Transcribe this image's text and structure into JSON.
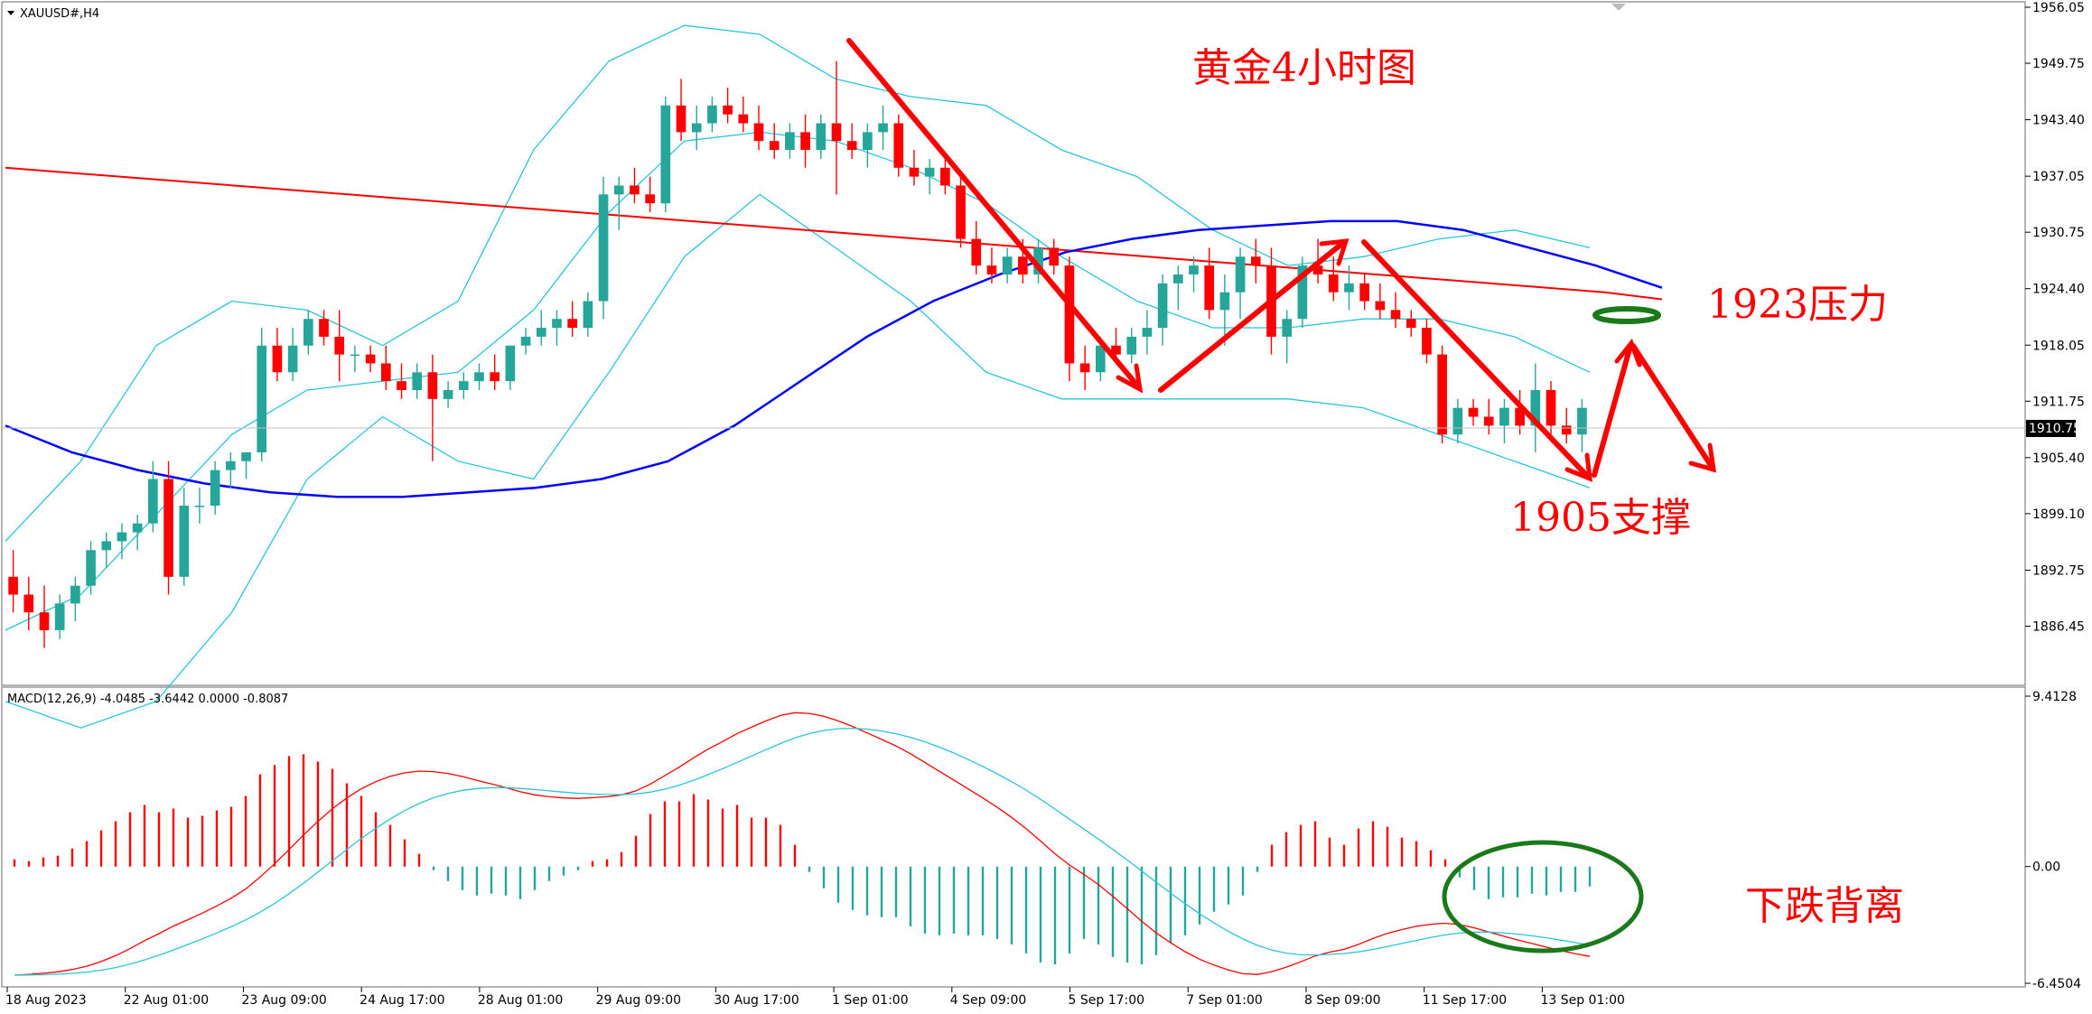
{
  "header": {
    "symbol": "XAUUSD#,H4",
    "macd_label": "MACD(12,26,9) -4.0485 -3.6442 0.0000 -0.8087"
  },
  "annotations": {
    "title": "黄金4小时图",
    "resistance": "1923压力",
    "support": "1905支撑",
    "divergence": "下跌背离"
  },
  "price_tag": "1910.75",
  "colors": {
    "bull": "#26a69a",
    "bear": "#ff0000",
    "ma_red": "#ff0000",
    "ma_blue": "#0000ff",
    "bands": "#26c6da",
    "annot": "#ff0000",
    "green_ellipse": "#1a7a1a"
  },
  "chart_data": [
    {
      "type": "candlestick",
      "symbol": "XAUUSD#",
      "timeframe": "H4",
      "ylim": [
        1880.0,
        1956.05
      ],
      "yticks": [
        "1956.05",
        "1949.75",
        "1943.40",
        "1937.05",
        "1930.75",
        "1924.40",
        "1918.05",
        "1911.75",
        "1905.40",
        "1899.10",
        "1892.75",
        "1886.45"
      ],
      "xticks": [
        "18 Aug 2023",
        "22 Aug 01:00",
        "23 Aug 09:00",
        "24 Aug 17:00",
        "28 Aug 01:00",
        "29 Aug 09:00",
        "30 Aug 17:00",
        "1 Sep 01:00",
        "4 Sep 09:00",
        "5 Sep 17:00",
        "7 Sep 01:00",
        "8 Sep 09:00",
        "11 Sep 17:00",
        "13 Sep 01:00"
      ],
      "current_price": 1910.75,
      "candles_ohlc": [
        [
          1892,
          1895,
          1888,
          1890
        ],
        [
          1890,
          1892,
          1886,
          1888
        ],
        [
          1888,
          1891,
          1884,
          1886
        ],
        [
          1886,
          1890,
          1885,
          1889
        ],
        [
          1889,
          1892,
          1887,
          1891
        ],
        [
          1891,
          1896,
          1890,
          1895
        ],
        [
          1895,
          1897,
          1893,
          1896
        ],
        [
          1896,
          1898,
          1894,
          1897
        ],
        [
          1897,
          1899,
          1895,
          1898
        ],
        [
          1898,
          1905,
          1897,
          1903
        ],
        [
          1903,
          1905,
          1890,
          1892
        ],
        [
          1892,
          1902,
          1891,
          1900
        ],
        [
          1900,
          1902,
          1898,
          1900
        ],
        [
          1900,
          1905,
          1899,
          1904
        ],
        [
          1904,
          1906,
          1902,
          1905
        ],
        [
          1905,
          1906,
          1903,
          1906
        ],
        [
          1906,
          1920,
          1905,
          1918
        ],
        [
          1918,
          1920,
          1914,
          1915
        ],
        [
          1915,
          1920,
          1914,
          1918
        ],
        [
          1918,
          1922,
          1917,
          1921
        ],
        [
          1921,
          1922,
          1918,
          1919
        ],
        [
          1919,
          1922,
          1914,
          1917
        ],
        [
          1917,
          1918,
          1915,
          1917
        ],
        [
          1917,
          1918,
          1915,
          1916
        ],
        [
          1916,
          1918,
          1913,
          1914
        ],
        [
          1914,
          1916,
          1912,
          1913
        ],
        [
          1913,
          1916,
          1912,
          1915
        ],
        [
          1915,
          1917,
          1905,
          1912
        ],
        [
          1912,
          1914,
          1911,
          1913
        ],
        [
          1913,
          1915,
          1912,
          1914
        ],
        [
          1914,
          1916,
          1913,
          1915
        ],
        [
          1915,
          1917,
          1913,
          1914
        ],
        [
          1914,
          1918,
          1913,
          1918
        ],
        [
          1918,
          1920,
          1917,
          1919
        ],
        [
          1919,
          1922,
          1918,
          1920
        ],
        [
          1920,
          1922,
          1918,
          1921
        ],
        [
          1921,
          1923,
          1919,
          1920
        ],
        [
          1920,
          1924,
          1919,
          1923
        ],
        [
          1923,
          1937,
          1921,
          1935
        ],
        [
          1935,
          1937,
          1931,
          1936
        ],
        [
          1936,
          1938,
          1934,
          1935
        ],
        [
          1935,
          1937,
          1933,
          1934
        ],
        [
          1934,
          1946,
          1933,
          1945
        ],
        [
          1945,
          1948,
          1941,
          1942
        ],
        [
          1942,
          1945,
          1940,
          1943
        ],
        [
          1943,
          1946,
          1942,
          1945
        ],
        [
          1945,
          1947,
          1943,
          1944
        ],
        [
          1944,
          1946,
          1942,
          1943
        ],
        [
          1943,
          1945,
          1940,
          1941
        ],
        [
          1941,
          1943,
          1939,
          1940
        ],
        [
          1940,
          1943,
          1939,
          1942
        ],
        [
          1942,
          1944,
          1938,
          1940
        ],
        [
          1940,
          1944,
          1939,
          1943
        ],
        [
          1943,
          1950,
          1935,
          1941
        ],
        [
          1941,
          1943,
          1939,
          1940
        ],
        [
          1940,
          1943,
          1938,
          1942
        ],
        [
          1942,
          1945,
          1940,
          1943
        ],
        [
          1943,
          1944,
          1937,
          1938
        ],
        [
          1938,
          1940,
          1936,
          1937
        ],
        [
          1937,
          1939,
          1935,
          1938
        ],
        [
          1938,
          1939,
          1935,
          1936
        ],
        [
          1936,
          1937,
          1929,
          1930
        ],
        [
          1930,
          1932,
          1926,
          1927
        ],
        [
          1927,
          1929,
          1925,
          1926
        ],
        [
          1926,
          1929,
          1925,
          1928
        ],
        [
          1928,
          1930,
          1925,
          1926
        ],
        [
          1926,
          1930,
          1925,
          1929
        ],
        [
          1929,
          1930,
          1926,
          1927
        ],
        [
          1927,
          1928,
          1914,
          1916
        ],
        [
          1916,
          1918,
          1913,
          1915
        ],
        [
          1915,
          1919,
          1914,
          1918
        ],
        [
          1918,
          1920,
          1916,
          1917
        ],
        [
          1917,
          1920,
          1916,
          1919
        ],
        [
          1919,
          1922,
          1917,
          1920
        ],
        [
          1920,
          1926,
          1918,
          1925
        ],
        [
          1925,
          1927,
          1922,
          1926
        ],
        [
          1926,
          1928,
          1924,
          1927
        ],
        [
          1927,
          1929,
          1921,
          1922
        ],
        [
          1922,
          1926,
          1918,
          1924
        ],
        [
          1924,
          1929,
          1921,
          1928
        ],
        [
          1928,
          1930,
          1925,
          1927
        ],
        [
          1927,
          1929,
          1917,
          1919
        ],
        [
          1919,
          1922,
          1916,
          1921
        ],
        [
          1921,
          1928,
          1920,
          1927
        ],
        [
          1927,
          1930,
          1925,
          1926
        ],
        [
          1926,
          1928,
          1923,
          1924
        ],
        [
          1924,
          1927,
          1922,
          1925
        ],
        [
          1925,
          1926,
          1922,
          1923
        ],
        [
          1923,
          1925,
          1921,
          1922
        ],
        [
          1922,
          1924,
          1920,
          1921
        ],
        [
          1921,
          1922,
          1919,
          1920
        ],
        [
          1920,
          1921,
          1916,
          1917
        ],
        [
          1917,
          1918,
          1907,
          1908
        ],
        [
          1908,
          1912,
          1907,
          1911
        ],
        [
          1911,
          1912,
          1909,
          1910
        ],
        [
          1910,
          1912,
          1908,
          1909
        ],
        [
          1909,
          1912,
          1907,
          1911
        ],
        [
          1911,
          1913,
          1908,
          1909
        ],
        [
          1909,
          1916,
          1906,
          1913
        ],
        [
          1913,
          1914,
          1908,
          1909
        ],
        [
          1909,
          1911,
          1907,
          1908
        ],
        [
          1908,
          1912,
          1906,
          1911
        ]
      ],
      "ma_slow_red": [
        1938,
        1937.5,
        1937,
        1936.5,
        1936,
        1935.5,
        1935,
        1934.5,
        1934,
        1933.5,
        1933,
        1932.5,
        1932,
        1931.5,
        1931,
        1930.5,
        1930,
        1929.5,
        1929,
        1928.5,
        1928,
        1927.5,
        1927,
        1926.5,
        1926,
        1925.5,
        1925,
        1924.5,
        1924,
        1923.2
      ],
      "ma_fast_blue": [
        1909,
        1906,
        1904,
        1902.5,
        1901.5,
        1901,
        1901,
        1901.5,
        1902,
        1903,
        1905,
        1909,
        1914,
        1919,
        1923,
        1926,
        1928.5,
        1930,
        1931,
        1931.5,
        1932,
        1932,
        1931,
        1929,
        1927,
        1924.5
      ],
      "bands_upper": [
        1896,
        1905,
        1918,
        1923,
        1922,
        1918,
        1923,
        1940,
        1950,
        1954,
        1953,
        1948,
        1946,
        1945,
        1940,
        1937,
        1931,
        1927,
        1928,
        1930,
        1931,
        1929
      ],
      "bands_mid": [
        1886,
        1890,
        1899,
        1908,
        1913,
        1914,
        1915,
        1922,
        1933,
        1941,
        1942,
        1941,
        1938,
        1934,
        1928,
        1923,
        1920,
        1920,
        1921,
        1921,
        1919,
        1915
      ],
      "bands_lower": [
        1878,
        1875,
        1878,
        1888,
        1903,
        1910,
        1905,
        1903,
        1915,
        1928,
        1935,
        1929,
        1923,
        1915,
        1912,
        1912,
        1912,
        1912,
        1911,
        1908,
        1905,
        1902
      ]
    },
    {
      "type": "bar",
      "name": "MACD(12,26,9)",
      "ylim": [
        -6.4504,
        9.4128
      ],
      "yticks": [
        "9.4128",
        "0.00",
        "-6.4504"
      ],
      "histogram": [
        0.4,
        0.3,
        0.5,
        0.6,
        1.0,
        1.4,
        2.0,
        2.5,
        3.0,
        3.4,
        3.0,
        3.2,
        2.7,
        2.8,
        3.1,
        3.3,
        3.9,
        5.1,
        5.6,
        6.1,
        6.2,
        5.8,
        5.4,
        4.6,
        3.9,
        3.0,
        2.3,
        1.5,
        0.7,
        -0.2,
        -0.8,
        -1.3,
        -1.6,
        -1.5,
        -1.6,
        -1.8,
        -1.3,
        -0.8,
        -0.5,
        -0.2,
        0.3,
        0.4,
        0.8,
        1.7,
        2.9,
        3.6,
        3.6,
        4.0,
        3.7,
        3.2,
        3.4,
        2.7,
        2.7,
        2.3,
        1.2,
        -0.3,
        -1.2,
        -2.0,
        -2.4,
        -2.7,
        -2.8,
        -2.8,
        -3.3,
        -3.7,
        -3.8,
        -3.7,
        -3.8,
        -3.8,
        -4.0,
        -4.3,
        -4.8,
        -5.3,
        -5.4,
        -4.8,
        -4.0,
        -4.3,
        -5.0,
        -5.3,
        -5.4,
        -4.9,
        -4.2,
        -3.8,
        -3.2,
        -2.5,
        -2.1,
        -1.6,
        -0.3,
        1.2,
        1.9,
        2.3,
        2.5,
        1.6,
        1.2,
        2.1,
        2.5,
        2.2,
        1.6,
        1.4,
        0.9,
        0.4,
        -0.6,
        -1.3,
        -1.8,
        -1.7,
        -1.7,
        -1.5,
        -1.6,
        -1.4,
        -1.4,
        -1.1
      ]
    }
  ]
}
